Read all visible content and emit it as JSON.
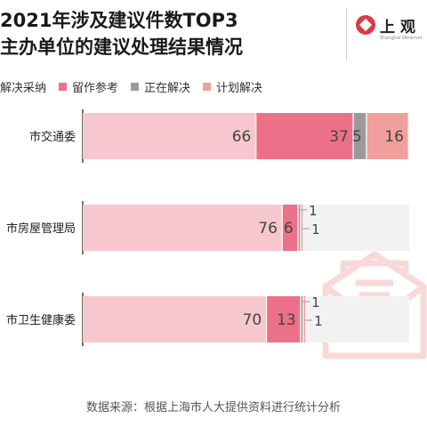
{
  "title": {
    "line1": "2021年涉及建议件数TOP3",
    "line2": "主办单位的建议处理结果情况"
  },
  "logo": {
    "text": "上观",
    "subtext": "Shanghai Observer"
  },
  "colors": {
    "cat1": "#f7c7cf",
    "cat2": "#ec7188",
    "cat3": "#9a9a9a",
    "cat4": "#f0a09c",
    "rowBg": "#f2f2f2",
    "watermark": "#f8d8d8"
  },
  "chart_data": {
    "type": "bar",
    "orientation": "horizontal",
    "stacked": true,
    "categories": [
      "市交通委",
      "市房屋管理局",
      "市卫生健康委"
    ],
    "series": [
      {
        "name": "解决采纳",
        "values": [
          66,
          76,
          70
        ]
      },
      {
        "name": "留作参考",
        "values": [
          37,
          6,
          13
        ]
      },
      {
        "name": "正在解决",
        "values": [
          5,
          1,
          1
        ]
      },
      {
        "name": "计划解决",
        "values": [
          16,
          1,
          1
        ]
      }
    ],
    "legend_position": "top-left",
    "grid": false
  },
  "source": "数据来源：根据上海市人大提供资料进行统计分析"
}
